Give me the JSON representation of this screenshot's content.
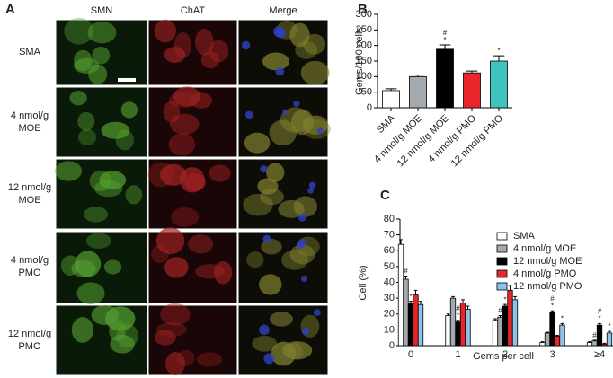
{
  "panel_a": {
    "label": "A",
    "columns": [
      "SMN",
      "ChAT",
      "Merge"
    ],
    "rows": [
      [
        "SMA"
      ],
      [
        "4 nmol/g",
        "MOE"
      ],
      [
        "12 nmol/g",
        "MOE"
      ],
      [
        "4 nmol/g",
        "PMO"
      ],
      [
        "12 nmol/g",
        "PMO"
      ]
    ]
  },
  "chart_data": [
    {
      "type": "bar",
      "panel": "B",
      "y_label": "Gems/100 cells",
      "categories": [
        "SMA",
        "4 nmol/g MOE",
        "12 nmol/g MOE",
        "4 nmol/g PMO",
        "12 nmol/g PMO"
      ],
      "values": [
        55,
        100,
        188,
        112,
        150
      ],
      "errors": [
        6,
        5,
        14,
        6,
        17
      ],
      "colors": [
        "#ffffff",
        "#a3a9ad",
        "#000000",
        "#e8262a",
        "#3fc4bd"
      ],
      "annotations": [
        null,
        null,
        [
          "#",
          "*"
        ],
        null,
        [
          "*"
        ]
      ],
      "ylim": [
        0,
        300
      ],
      "yticks": [
        0,
        50,
        100,
        150,
        200,
        250,
        300
      ]
    },
    {
      "type": "grouped_bar",
      "panel": "C",
      "y_label": "Cell (%)",
      "x_label": "Gems per cell",
      "categories": [
        "0",
        "1",
        "2",
        "3",
        "≥4"
      ],
      "series": [
        {
          "name": "SMA",
          "color": "#ffffff",
          "values": [
            64,
            19,
            16,
            2,
            2
          ],
          "errors": [
            3,
            1,
            1,
            0.5,
            0.5
          ],
          "annotations": [
            null,
            null,
            null,
            null,
            null
          ]
        },
        {
          "name": "4 nmol/g MOE",
          "color": "#a3a9ad",
          "values": [
            42,
            30,
            18,
            8,
            3
          ],
          "errors": [
            2,
            1,
            1,
            0.5,
            0.5
          ],
          "annotations": [
            [
              "#"
            ],
            null,
            [
              "#"
            ],
            null,
            [
              "#"
            ]
          ]
        },
        {
          "name": "12 nmol/g MOE",
          "color": "#000000",
          "values": [
            27,
            15,
            25,
            21,
            13
          ],
          "errors": [
            1,
            1,
            1,
            1,
            1
          ],
          "annotations": [
            [
              "*"
            ],
            [
              "#",
              "*"
            ],
            [
              "*"
            ],
            [
              "#",
              "*"
            ],
            [
              "#",
              "*"
            ]
          ]
        },
        {
          "name": "4 nmol/g PMO",
          "color": "#e8262a",
          "values": [
            32,
            27,
            35,
            6,
            1
          ],
          "errors": [
            3,
            2,
            3,
            0.5,
            0.5
          ],
          "annotations": [
            null,
            null,
            null,
            null,
            null
          ]
        },
        {
          "name": "12 nmol/g PMO",
          "color": "#8fc3ea",
          "values": [
            26,
            23,
            29,
            13,
            8
          ],
          "errors": [
            2,
            2,
            2,
            1,
            1
          ],
          "annotations": [
            null,
            null,
            null,
            [
              "*"
            ],
            [
              "*"
            ]
          ]
        }
      ],
      "ylim": [
        0,
        80
      ],
      "yticks": [
        0,
        10,
        20,
        30,
        40,
        50,
        60,
        70,
        80
      ]
    }
  ]
}
